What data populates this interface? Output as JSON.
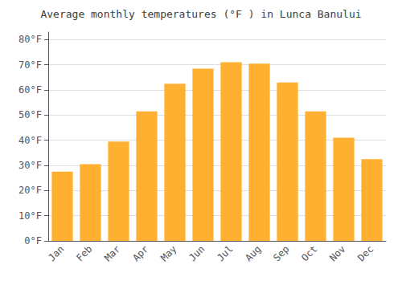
{
  "chart_data": {
    "type": "bar",
    "title": "Average monthly temperatures (°F ) in Lunca Banului",
    "categories": [
      "Jan",
      "Feb",
      "Mar",
      "Apr",
      "May",
      "Jun",
      "Jul",
      "Aug",
      "Sep",
      "Oct",
      "Nov",
      "Dec"
    ],
    "values": [
      27.5,
      30.5,
      39.5,
      51.5,
      62.5,
      68.5,
      71.0,
      70.5,
      63.0,
      51.5,
      41.0,
      32.5
    ],
    "color": "#FFB030",
    "ylim": [
      0,
      83
    ],
    "yticks": [
      {
        "value": 0,
        "label": "0°F"
      },
      {
        "value": 10,
        "label": "10°F"
      },
      {
        "value": 20,
        "label": "20°F"
      },
      {
        "value": 30,
        "label": "30°F"
      },
      {
        "value": 40,
        "label": "40°F"
      },
      {
        "value": 50,
        "label": "50°F"
      },
      {
        "value": 60,
        "label": "60°F"
      },
      {
        "value": 70,
        "label": "70°F"
      },
      {
        "value": 80,
        "label": "80°F"
      }
    ],
    "grid": true
  }
}
